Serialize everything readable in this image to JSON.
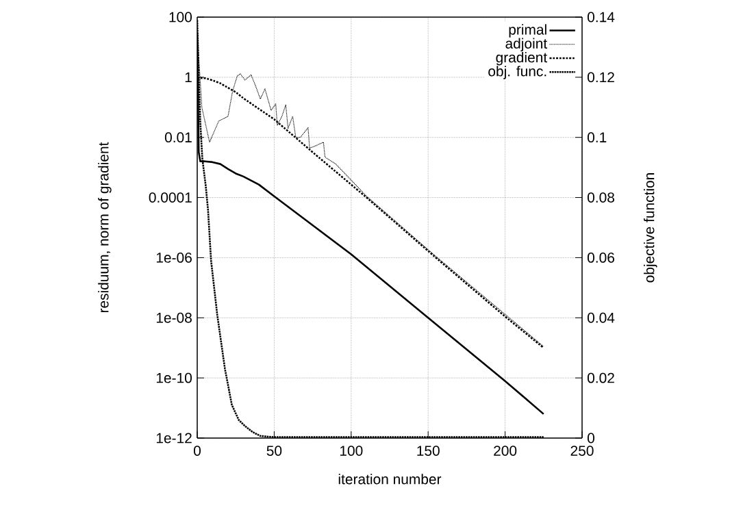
{
  "chart_data": {
    "type": "line",
    "xlabel": "iteration number",
    "ylabel": "residuum, norm of gradient",
    "y2label": "objective function",
    "log": "y",
    "grid": true,
    "legend": "top right",
    "xlim": [
      0,
      250
    ],
    "xticks": [
      0,
      50,
      100,
      150,
      200,
      250
    ],
    "ylim": [
      1e-12,
      100
    ],
    "yticks": [
      {
        "value": 1e-12,
        "label": "1e-12"
      },
      {
        "value": 1e-10,
        "label": "1e-10"
      },
      {
        "value": 1e-08,
        "label": "1e-08"
      },
      {
        "value": 1e-06,
        "label": "1e-06"
      },
      0.0001,
      0.01,
      1,
      100
    ],
    "y2lim": [
      0,
      0.14
    ],
    "y2ticks": [
      0,
      0.02,
      0.04,
      0.06,
      0.08,
      0.1,
      0.12,
      0.14
    ],
    "series": [
      {
        "name": "primal",
        "color": "#000000",
        "line_style": "solid",
        "x": [
          0,
          1,
          2,
          5,
          10,
          15,
          20,
          25,
          30,
          40,
          50,
          100,
          150,
          200,
          225
        ],
        "values": [
          30,
          0.0032,
          0.0016,
          0.0016,
          0.0015,
          0.0013,
          0.00089,
          0.00063,
          0.0005,
          0.00027,
          0.00011,
          1.3e-06,
          1e-08,
          7.9e-11,
          6.3e-12
        ]
      },
      {
        "name": "adjoint",
        "color": "#000000",
        "line_style": "dotted",
        "x": [
          0,
          3,
          8,
          14,
          20,
          23,
          26,
          28,
          31,
          35,
          38,
          41,
          44,
          48,
          51,
          52,
          55,
          57.5,
          59,
          62,
          64,
          67,
          72,
          73,
          76,
          82,
          83,
          90,
          110,
          155,
          200,
          225
        ],
        "values": [
          30,
          0.1,
          0.0069,
          0.035,
          0.05,
          0.35,
          1.1,
          1.3,
          0.81,
          1.2,
          0.5,
          0.19,
          0.41,
          0.079,
          0.13,
          0.025,
          0.05,
          0.12,
          0.02,
          0.05,
          0.01,
          0.01,
          0.021,
          0.0044,
          0.005,
          0.0069,
          0.0022,
          0.0013,
          0.00011,
          1.1e-06,
          1.3e-08,
          1.1e-09
        ]
      },
      {
        "name": "gradient",
        "color": "#000000",
        "line_style": "dashdot",
        "x": [
          0,
          5,
          10,
          15,
          20,
          25,
          30,
          40,
          50,
          75,
          110,
          155,
          200,
          225
        ],
        "values": [
          0.95,
          0.93,
          0.79,
          0.63,
          0.45,
          0.32,
          0.2,
          0.089,
          0.04,
          0.0032,
          0.0001,
          1e-06,
          1.1e-08,
          1e-09
        ]
      },
      {
        "name": "obj. func.",
        "color": "#000000",
        "line_style": "dotted",
        "axis": "y2",
        "x": [
          0,
          1,
          2,
          3.3,
          5.5,
          7,
          9,
          13,
          18,
          22.5,
          27,
          31,
          36,
          41,
          50,
          100,
          150,
          225
        ],
        "values": [
          0.139,
          0.12,
          0.105,
          0.093,
          0.084,
          0.076,
          0.059,
          0.041,
          0.023,
          0.011,
          0.006,
          0.004,
          0.002,
          0.0007,
          0.0003,
          0.0003,
          0.0003,
          0.0003
        ]
      }
    ]
  }
}
